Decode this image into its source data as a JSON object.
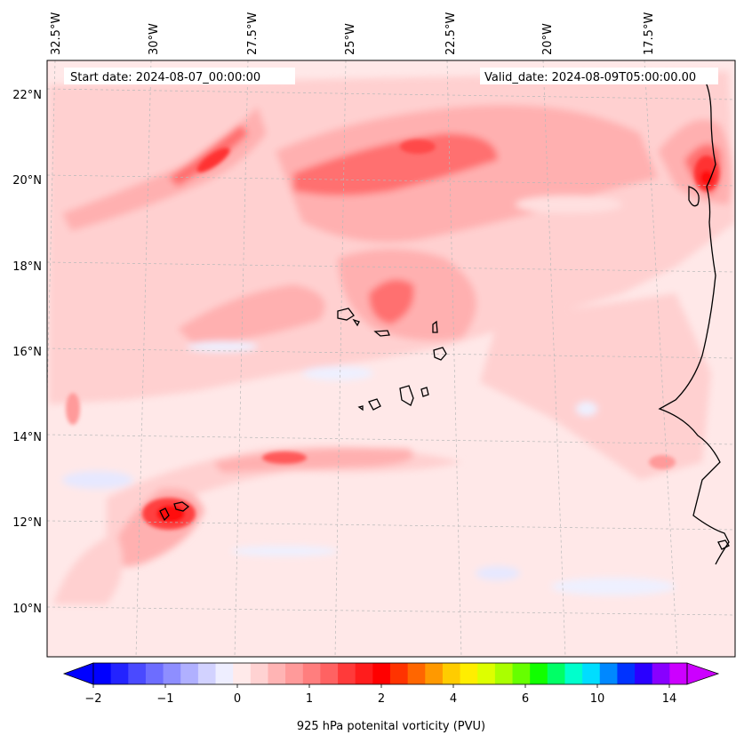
{
  "map": {
    "header": {
      "start_date": "Start date: 2024-08-07_00:00:00",
      "valid_date": "Valid_date: 2024-08-09T05:00:00.00"
    },
    "top_axis_labels": [
      "32.5°W",
      "30°W",
      "27.5°W",
      "25°W",
      "22.5°W",
      "20°W",
      "17.5°W"
    ],
    "left_axis_labels": [
      "22°N",
      "20°N",
      "18°N",
      "16°N",
      "14°N",
      "12°N",
      "10°N"
    ],
    "colorbar": {
      "tick_labels": [
        "−2",
        "−1",
        "0",
        "1",
        "2",
        "4",
        "6",
        "10",
        "14"
      ],
      "label": "925 hPa potenital vorticity (PVU)",
      "colors": [
        "#0000ff",
        "#2323ff",
        "#4a4aff",
        "#6d6dff",
        "#8e8eff",
        "#b0b0ff",
        "#d2d2ff",
        "#eeeeff",
        "#ffeaea",
        "#ffd2d2",
        "#ffb4b4",
        "#ff9a9a",
        "#ff7e7e",
        "#ff6262",
        "#ff3a3a",
        "#ff1c1c",
        "#ff0000",
        "#ff3300",
        "#ff6600",
        "#ff9900",
        "#ffcc00",
        "#ffee00",
        "#ddff00",
        "#aaff00",
        "#66ff00",
        "#11ff00",
        "#00ff66",
        "#00ffcc",
        "#00ddff",
        "#0088ff",
        "#0033ff",
        "#2a00ff",
        "#8800ff",
        "#cc00ff"
      ]
    },
    "fill_colors": {
      "background": "#ffe8e8",
      "light": "#ffd0d0",
      "medium": "#ffb0b0",
      "strong": "#ff7070",
      "intense": "#ff3030",
      "peak": "#ff0a0a",
      "negative": "#e6e8ff",
      "negative_strong": "#c8ccff"
    }
  }
}
